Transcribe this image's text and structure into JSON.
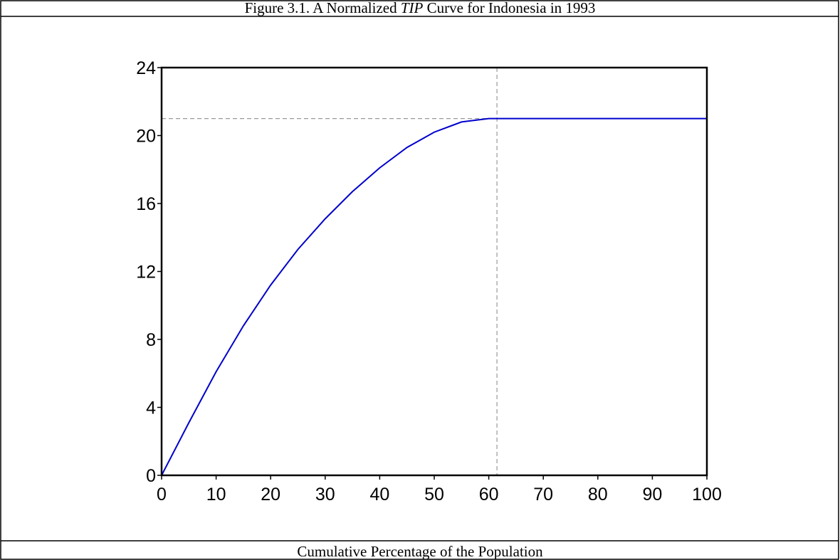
{
  "chart_data": {
    "type": "line",
    "title": [
      "Figure 3.1. A Normalized ",
      "TIP",
      " Curve for Indonesia in 1993"
    ],
    "x_label": "Cumulative Percentage of the Population",
    "series": [
      {
        "color": "#0000cc",
        "x": [
          0,
          5,
          10,
          15,
          20,
          25,
          30,
          35,
          40,
          45,
          50,
          55,
          60,
          61.5,
          70,
          80,
          90,
          100
        ],
        "values": [
          0,
          3.1,
          6.1,
          8.8,
          11.2,
          13.3,
          15.1,
          16.7,
          18.1,
          19.3,
          20.2,
          20.8,
          21.0,
          21.0,
          21.0,
          21.0,
          21.0,
          21.0
        ]
      }
    ],
    "reference": {
      "x": 61.5,
      "y": 21.0,
      "color": "#999999"
    },
    "xlim": [
      0,
      100
    ],
    "ylim": [
      0,
      24
    ],
    "xticks": [
      0,
      10,
      20,
      30,
      40,
      50,
      60,
      70,
      80,
      90,
      100
    ],
    "yticks": [
      0,
      4,
      8,
      12,
      16,
      20,
      24
    ]
  }
}
